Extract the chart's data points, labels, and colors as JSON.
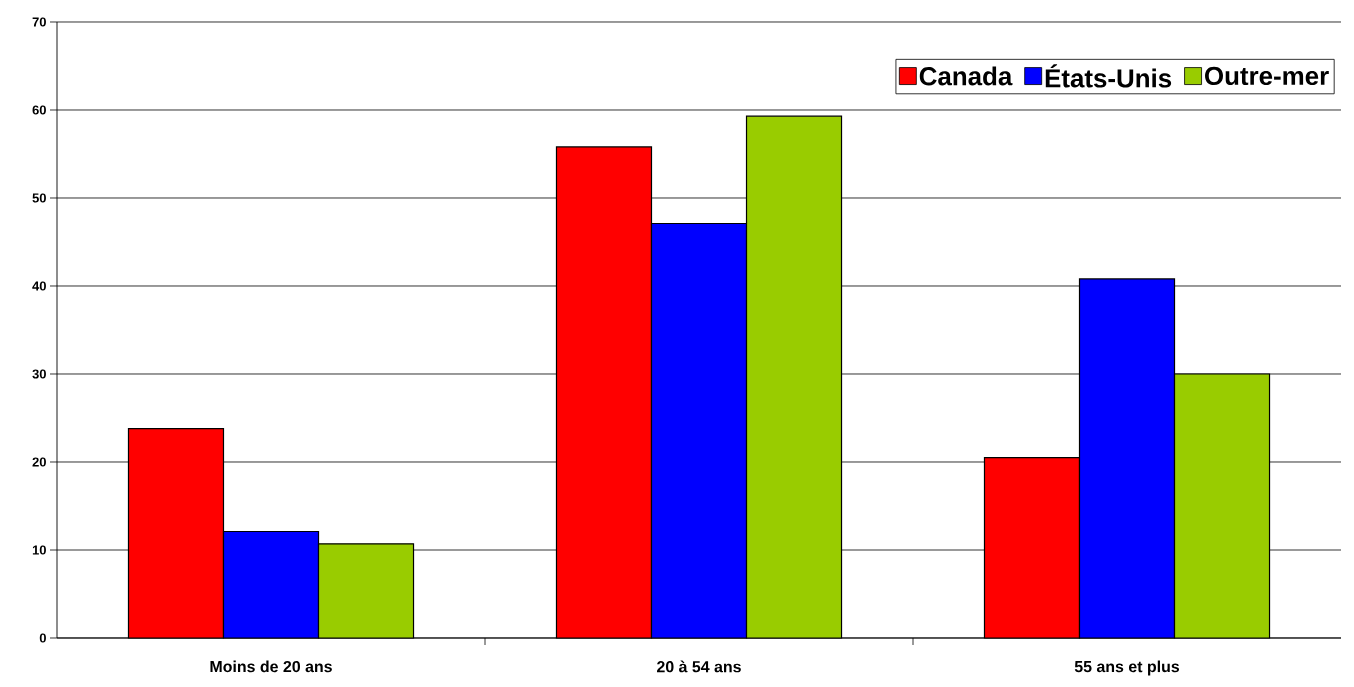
{
  "chart_data": {
    "type": "bar",
    "categories": [
      "Moins de 20 ans",
      "20 à 54 ans",
      "55 ans et plus"
    ],
    "series": [
      {
        "name": "Canada",
        "color": "#ff0000",
        "values": [
          23.8,
          55.8,
          20.5
        ]
      },
      {
        "name": "États-Unis",
        "color": "#0000ff",
        "values": [
          12.1,
          47.1,
          40.8
        ]
      },
      {
        "name": "Outre-mer",
        "color": "#99cc00",
        "values": [
          10.7,
          59.3,
          30.0
        ]
      }
    ],
    "ylim": [
      0,
      70
    ],
    "yticks": [
      0,
      10,
      20,
      30,
      40,
      50,
      60,
      70
    ],
    "grid": "y",
    "legend": "top right"
  }
}
